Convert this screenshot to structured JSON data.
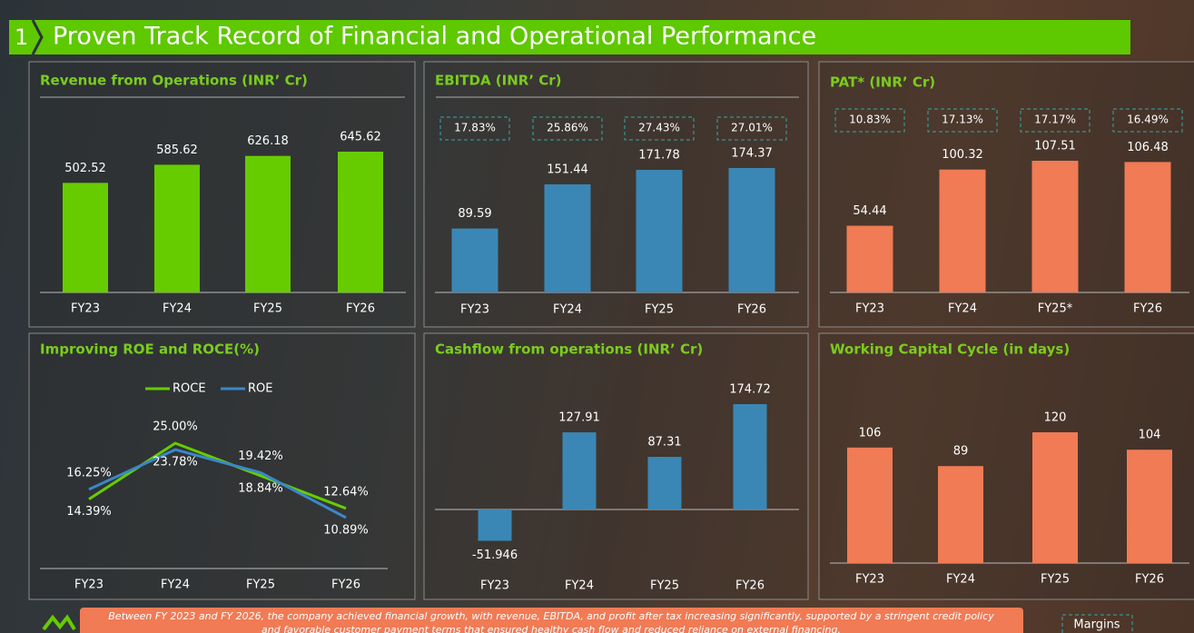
{
  "header": {
    "number": "1",
    "title": "Proven Track Record of Financial and Operational Performance"
  },
  "chart_data": [
    {
      "type": "bar",
      "title": "Revenue from Operations  (INR’ Cr)",
      "categories": [
        "FY23",
        "FY24",
        "FY25",
        "FY26"
      ],
      "values": [
        502.52,
        585.62,
        626.18,
        645.62
      ],
      "color": "#66cc00"
    },
    {
      "type": "bar",
      "title": "EBITDA (INR’ Cr)",
      "categories": [
        "FY23",
        "FY24",
        "FY25",
        "FY26"
      ],
      "values": [
        89.59,
        151.44,
        171.78,
        174.37
      ],
      "margins": [
        "17.83%",
        "25.86%",
        "27.43%",
        "27.01%"
      ],
      "color": "#3a87b5"
    },
    {
      "type": "bar",
      "title": "PAT*  (INR’ Cr)",
      "categories": [
        "FY23",
        "FY24",
        "FY25*",
        "FY26"
      ],
      "values": [
        54.44,
        100.32,
        107.51,
        106.48
      ],
      "margins": [
        "10.83%",
        "17.13%",
        "17.17%",
        "16.49%"
      ],
      "color": "#f07b55"
    },
    {
      "type": "line",
      "title": "Improving ROE and ROCE(%)",
      "categories": [
        "FY23",
        "FY24",
        "FY25",
        "FY26"
      ],
      "series": [
        {
          "name": "ROCE",
          "color": "#66cc00",
          "values": [
            14.39,
            25.0,
            18.84,
            12.64
          ],
          "value_labels": [
            "14.39%",
            "25.00%",
            "18.84%",
            "12.64%"
          ]
        },
        {
          "name": "ROE",
          "color": "#3a87c8",
          "values": [
            16.25,
            23.78,
            19.42,
            10.89
          ],
          "value_labels": [
            "16.25%",
            "23.78%",
            "19.42%",
            "10.89%"
          ]
        }
      ]
    },
    {
      "type": "bar",
      "title": "Cashflow from operations (INR’ Cr)",
      "categories": [
        "FY23",
        "FY24",
        "FY25",
        "FY26"
      ],
      "values": [
        -51.946,
        127.91,
        87.31,
        174.72
      ],
      "color": "#3a87b5"
    },
    {
      "type": "bar",
      "title": "Working Capital Cycle (in days)",
      "categories": [
        "FY23",
        "FY24",
        "FY25",
        "FY26"
      ],
      "values": [
        106,
        89,
        120,
        104
      ],
      "color": "#f07b55"
    }
  ],
  "footer": {
    "note": "Between FY 2023 and FY 2026, the company achieved financial growth, with revenue, EBITDA, and profit after tax increasing significantly, supported by a stringent credit policy",
    "note_continued": "and favorable customer payment terms that ensured healthy cash flow and reduced reliance on external financing.",
    "legend_label": "Margins"
  }
}
